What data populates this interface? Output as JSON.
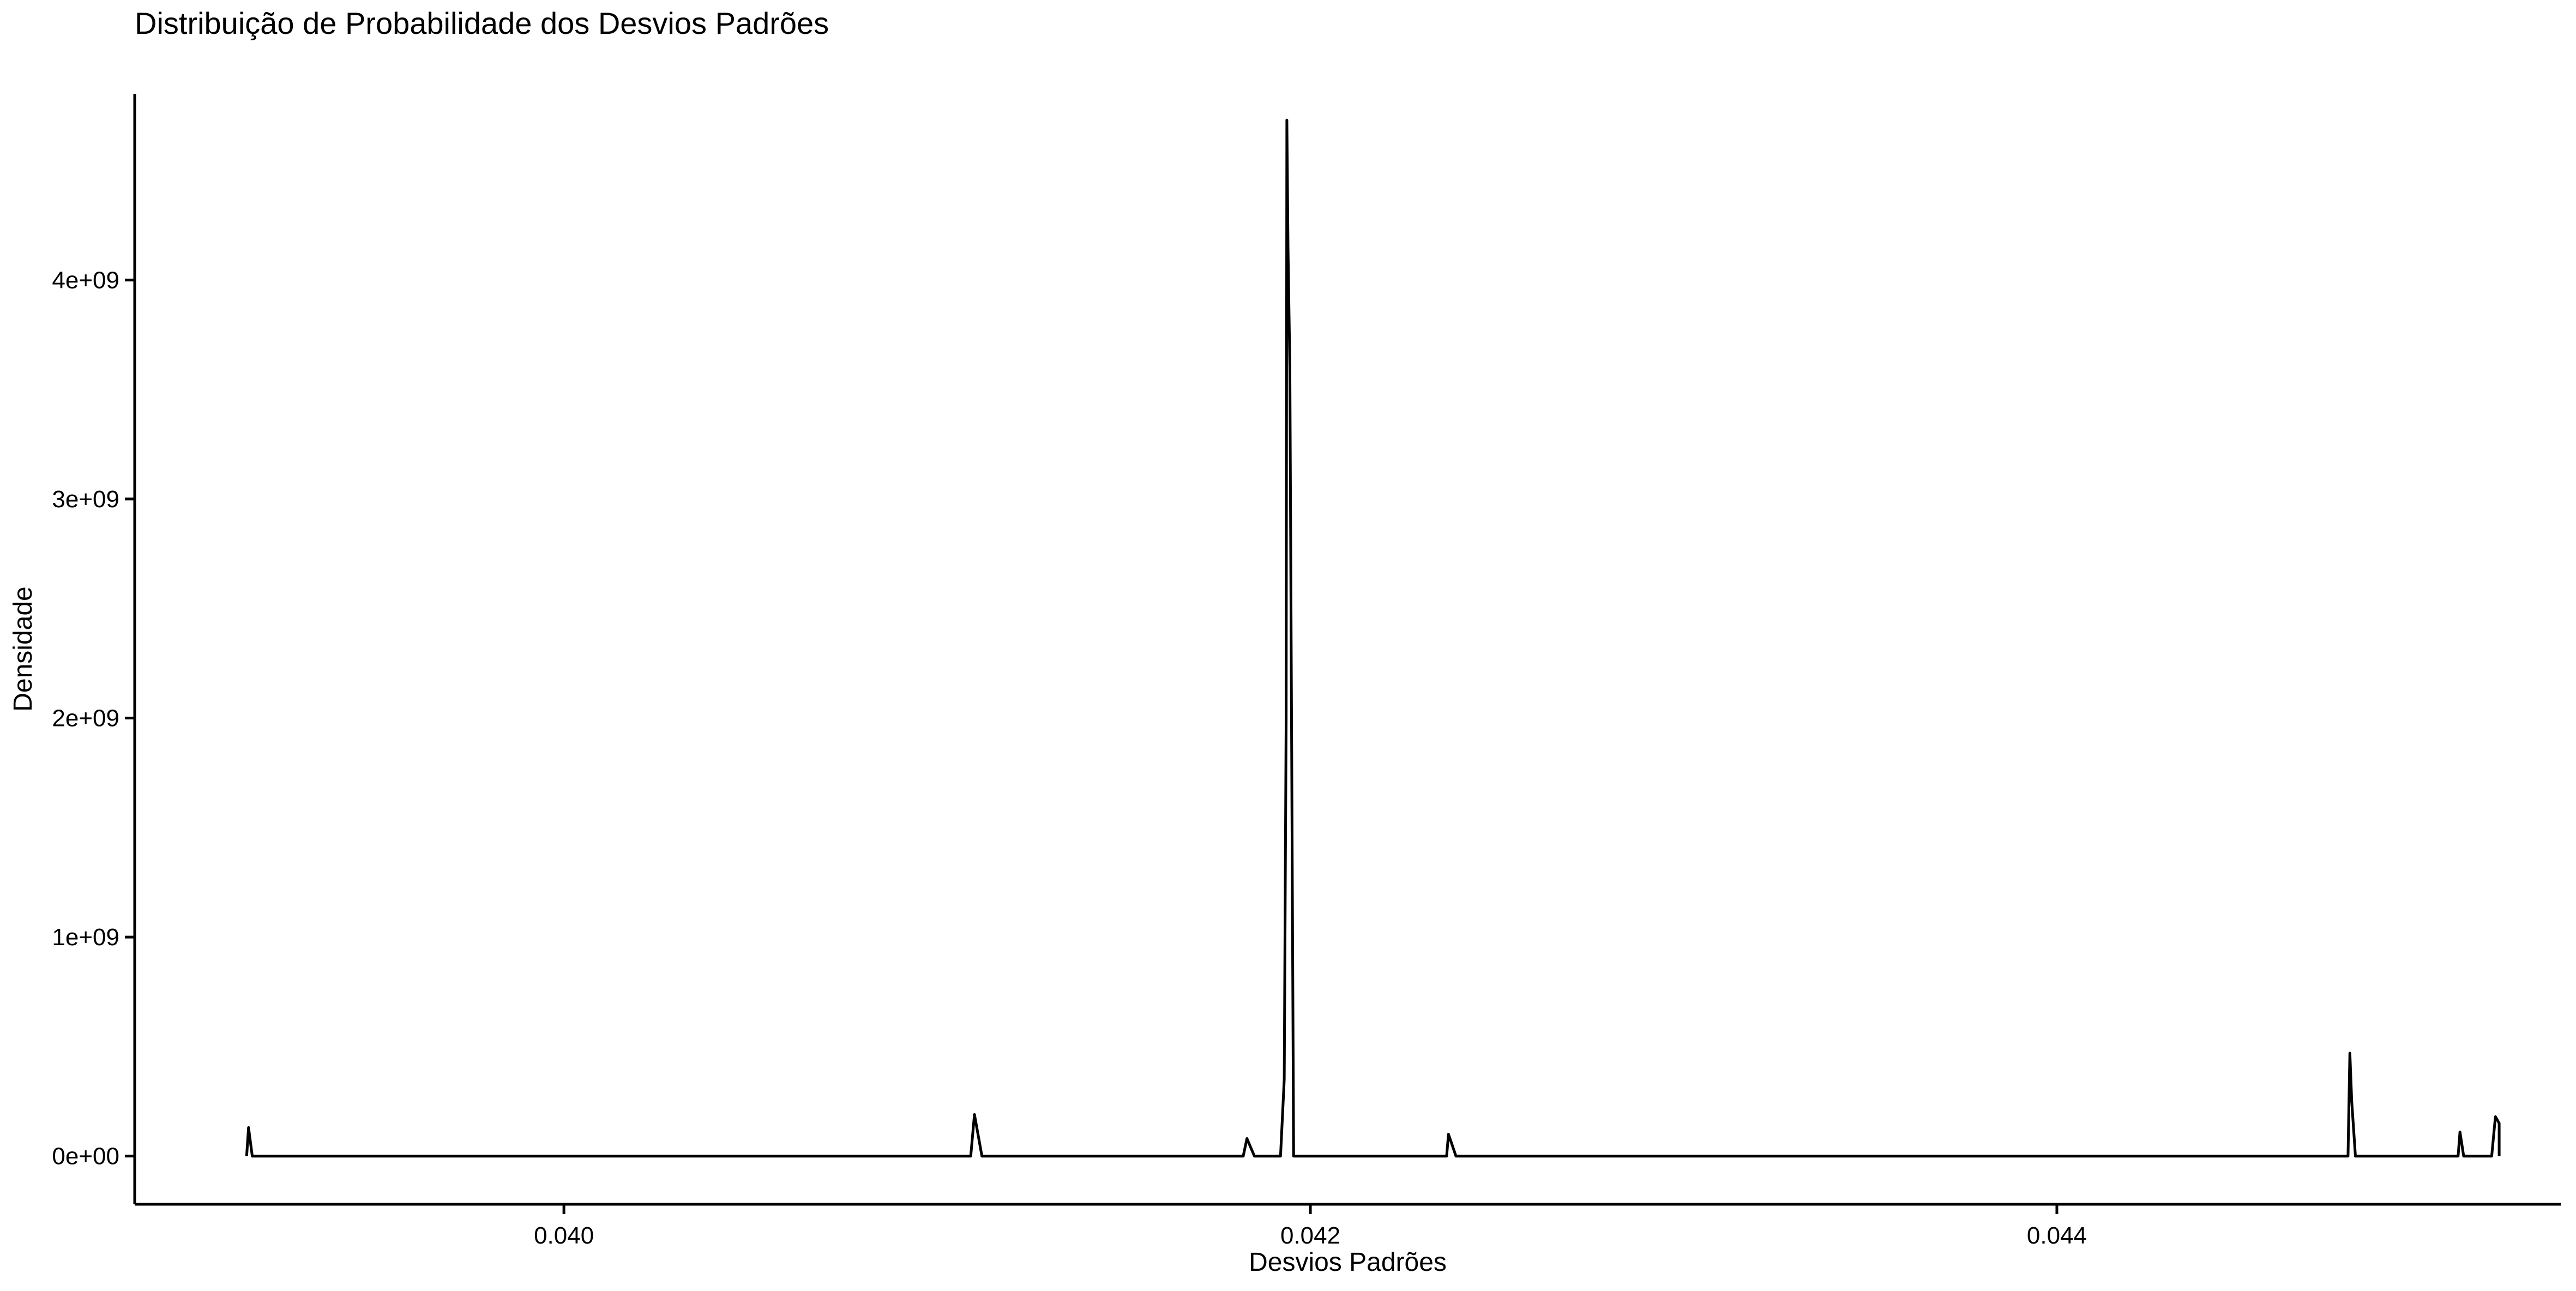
{
  "chart_data": {
    "type": "line",
    "title": "Distribuição de Probabilidade dos Desvios Padrões",
    "xlabel": "Desvios Padrões",
    "ylabel": "Densidade",
    "xlim": [
      0.03885,
      0.04535
    ],
    "ylim": [
      -220000000,
      4850000000
    ],
    "x_ticks": [
      {
        "value": 0.04,
        "label": "0.040"
      },
      {
        "value": 0.042,
        "label": "0.042"
      },
      {
        "value": 0.044,
        "label": "0.044"
      }
    ],
    "y_ticks": [
      {
        "value": 0,
        "label": "0e+00"
      },
      {
        "value": 1000000000,
        "label": "1e+09"
      },
      {
        "value": 2000000000,
        "label": "2e+09"
      },
      {
        "value": 3000000000,
        "label": "3e+09"
      },
      {
        "value": 4000000000,
        "label": "4e+09"
      }
    ],
    "grid": false,
    "line_color": "#000000",
    "series": [
      {
        "x": [
          0.03915,
          0.039155,
          0.039165,
          0.04109,
          0.0411,
          0.04112,
          0.04182,
          0.04183,
          0.04185,
          0.04192,
          0.04193,
          0.041935,
          0.041937,
          0.04194,
          0.041945,
          0.041955,
          0.042365,
          0.04237,
          0.04239,
          0.04478,
          0.044785,
          0.04479,
          0.0448,
          0.045075,
          0.04508,
          0.04509,
          0.045165,
          0.045175,
          0.045185,
          0.045185
        ],
        "y": [
          0,
          130000000,
          0,
          0,
          190000000,
          0,
          0,
          80000000,
          0,
          0,
          350000000,
          2000000000,
          4730000000,
          4150000000,
          3600000000,
          0,
          0,
          100000000,
          0,
          0,
          470000000,
          250000000,
          0,
          0,
          110000000,
          0,
          0,
          180000000,
          150000000,
          0
        ]
      }
    ]
  }
}
